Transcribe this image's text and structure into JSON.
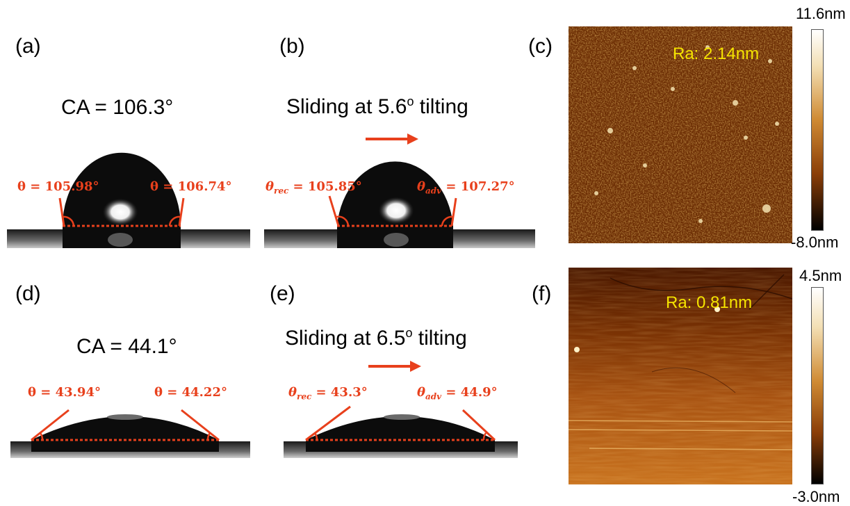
{
  "panels": {
    "a": {
      "label": "(a)",
      "caption": "CA = 106.3°",
      "left_angle": "θ = 105.98°",
      "right_angle": "θ = 106.74°"
    },
    "b": {
      "label": "(b)",
      "caption_pre": "Sliding at 5.6",
      "caption_sup": "o",
      "caption_post": " tilting",
      "left_sym": "θ",
      "left_sub": "rec",
      "left_val": " = 105.85°",
      "right_sym": "θ",
      "right_sub": "adv",
      "right_val": " = 107.27°"
    },
    "c": {
      "label": "(c)",
      "ra": "Ra: 2.14nm",
      "cbar_max": "11.6nm",
      "cbar_min": "-8.0nm"
    },
    "d": {
      "label": "(d)",
      "caption": "CA = 44.1°",
      "left_angle": "θ = 43.94°",
      "right_angle": "θ = 44.22°"
    },
    "e": {
      "label": "(e)",
      "caption_pre": "Sliding at 6.5",
      "caption_sup": "o",
      "caption_post": " tilting",
      "left_sym": "θ",
      "left_sub": "rec",
      "left_val": " = 43.3°",
      "right_sym": "θ",
      "right_sub": "adv",
      "right_val": " = 44.9°"
    },
    "f": {
      "label": "(f)",
      "ra": "Ra: 0.81nm",
      "cbar_max": "4.5nm",
      "cbar_min": "-3.0nm"
    }
  },
  "colors": {
    "annotation": "#e8401c",
    "ra_text": "#f5e400"
  }
}
